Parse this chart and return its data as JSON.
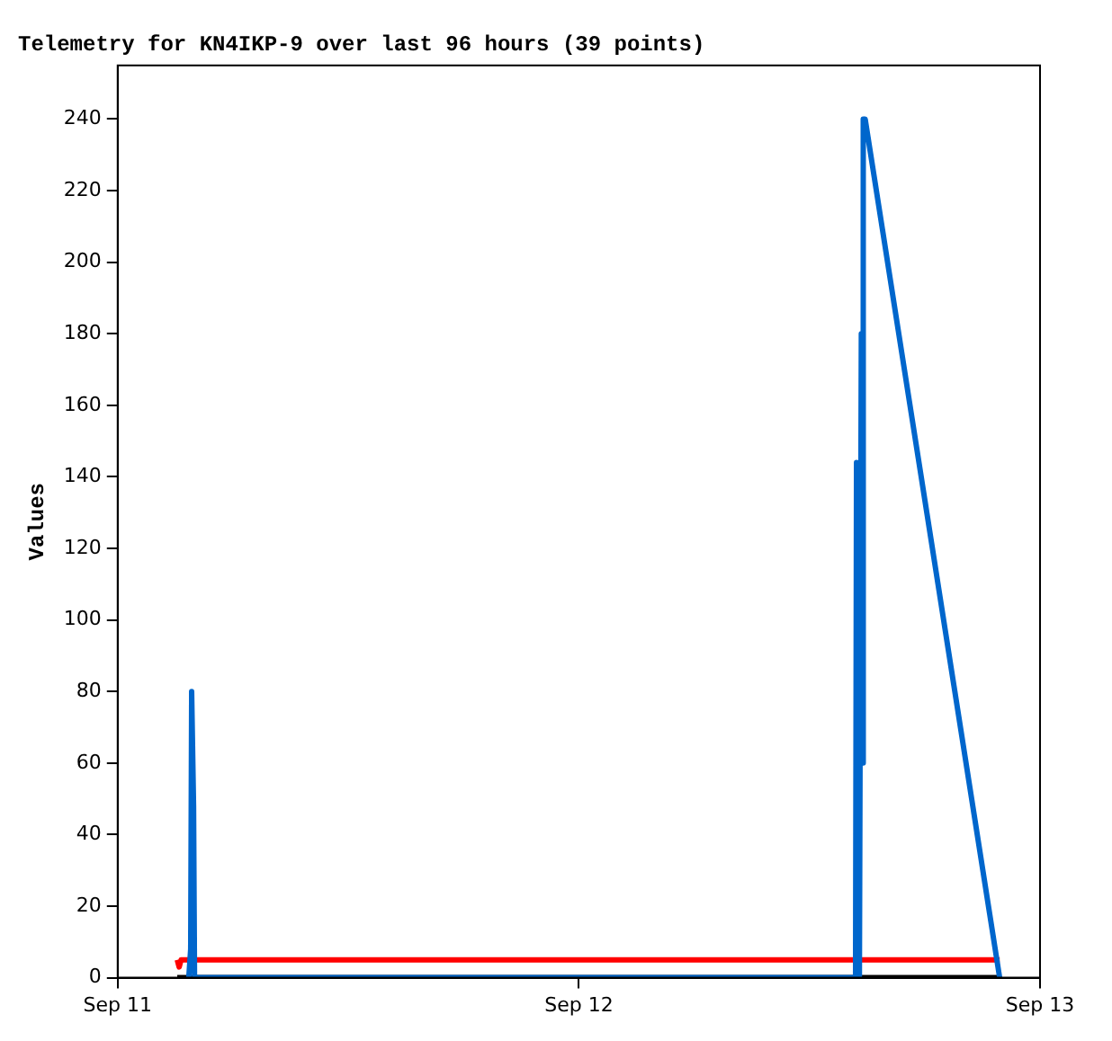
{
  "chart_data": {
    "type": "line",
    "title": "Telemetry for KN4IKP-9 over last 96 hours (39 points)",
    "ylabel": "Values",
    "xlim": [
      "--09-11",
      "--09-13"
    ],
    "xticks": [
      {
        "value": "--09-11",
        "label": "Sep 11"
      },
      {
        "value": "--09-12",
        "label": "Sep 12"
      },
      {
        "value": "--09-13",
        "label": "Sep 13"
      }
    ],
    "ylim": [
      0,
      255
    ],
    "yticks": [
      0,
      20,
      40,
      60,
      80,
      100,
      120,
      140,
      160,
      180,
      200,
      220,
      240
    ],
    "grid": false,
    "legend": false,
    "marker": "none",
    "line_style": "solid",
    "series": [
      {
        "color": "#0066cc",
        "x": [
          "--09-11T03:42",
          "--09-11T03:48",
          "--09-11T03:51",
          "--09-11T03:57",
          "--09-11T04:00",
          "--09-12T14:24",
          "--09-12T14:27",
          "--09-12T14:36",
          "--09-12T14:42",
          "--09-12T14:45",
          "--09-12T14:48",
          "--09-12T14:54",
          "--09-12T21:54"
        ],
        "values": [
          0,
          8,
          80,
          48,
          0,
          0,
          144,
          0,
          180,
          60,
          240,
          240,
          0
        ]
      },
      {
        "color": "#ff0000",
        "x": [
          "--09-11T03:06",
          "--09-11T03:12",
          "--09-11T03:18",
          "--09-12T21:54"
        ],
        "values": [
          5,
          3,
          5,
          5
        ]
      },
      {
        "color": "#000000",
        "x": [
          "--09-11T03:06",
          "--09-12T21:54"
        ],
        "values": [
          0,
          0
        ]
      }
    ]
  }
}
